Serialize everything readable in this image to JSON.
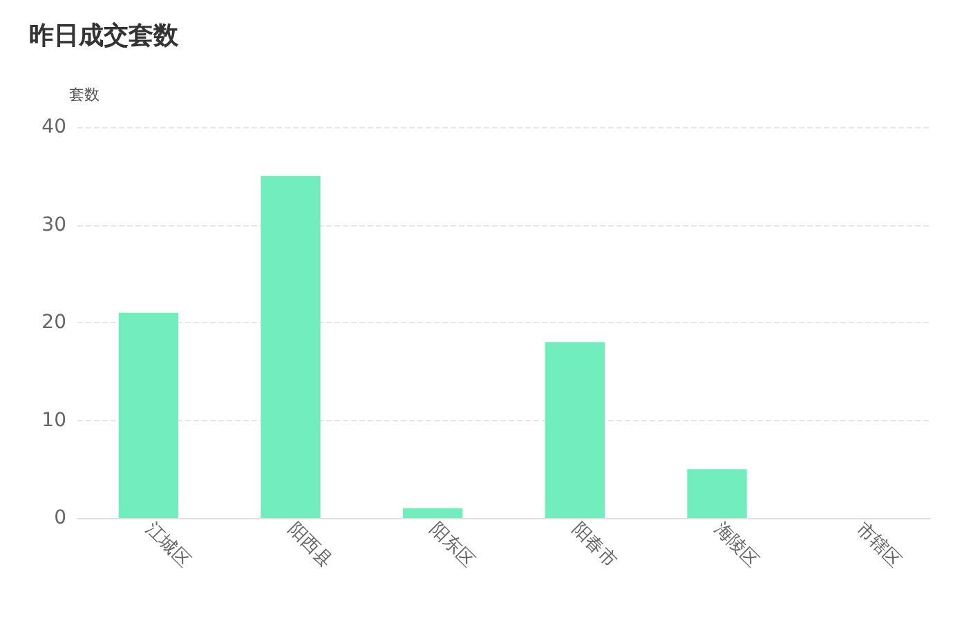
{
  "chart_data": {
    "type": "bar",
    "title": "昨日成交套数",
    "ylabel": "套数",
    "categories": [
      "江城区",
      "阳西县",
      "阳东区",
      "阳春市",
      "海陵区",
      "市辖区"
    ],
    "values": [
      21,
      35,
      1,
      18,
      5,
      0
    ],
    "color": "#72edbe",
    "ylim": [
      0,
      40
    ],
    "yticks": [
      0,
      10,
      20,
      30,
      40
    ],
    "grid": "y"
  }
}
